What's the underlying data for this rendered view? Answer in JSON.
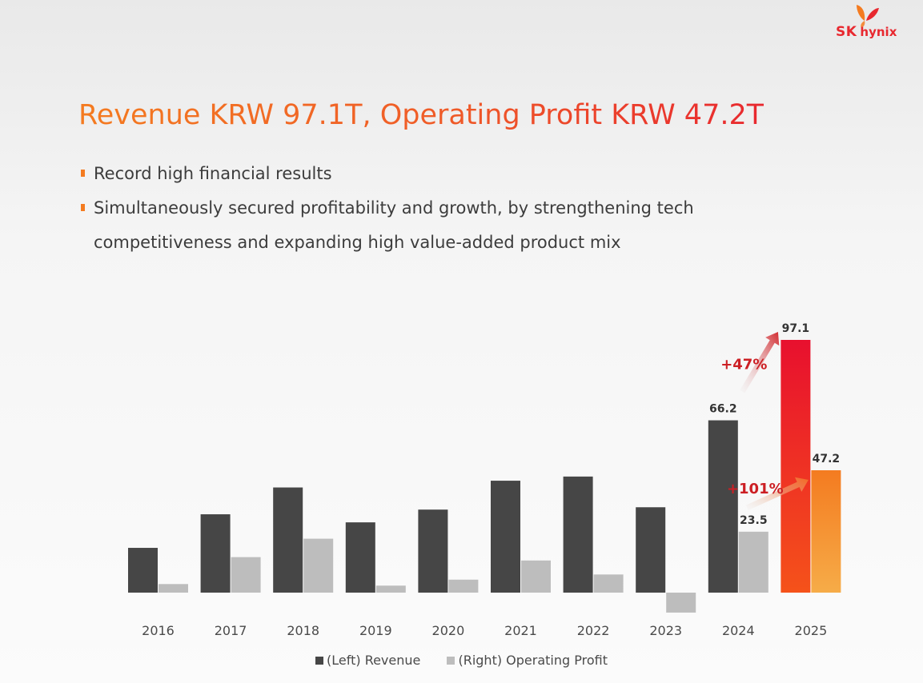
{
  "brand": {
    "name": "SK hynix",
    "sk": "SK",
    "hynix": "hynix"
  },
  "header": {
    "title": "Revenue KRW 97.1T, Operating Profit KRW 47.2T"
  },
  "bullets": [
    "Record high financial results",
    "Simultaneously secured profitability and growth, by strengthening tech competitiveness and expanding high value-added product mix"
  ],
  "colors": {
    "accent": "#f47b20",
    "revenue": "#464646",
    "operating_profit": "#bdbdbd",
    "highlight_red": "#e8282f",
    "highlight_orange": "#f47b20"
  },
  "chart_data": {
    "type": "bar",
    "categories": [
      "2016",
      "2017",
      "2018",
      "2019",
      "2020",
      "2021",
      "2022",
      "2023",
      "2024",
      "2025"
    ],
    "series": [
      {
        "name": "(Left) Revenue",
        "axis": "left",
        "values": [
          17.2,
          30.1,
          40.4,
          27.0,
          31.9,
          43.0,
          44.6,
          32.8,
          66.2,
          97.1
        ]
      },
      {
        "name": "(Right) Operating Profit",
        "axis": "right",
        "values": [
          3.3,
          13.7,
          20.8,
          2.7,
          5.0,
          12.4,
          7.0,
          -7.7,
          23.5,
          47.2
        ]
      }
    ],
    "data_labels": [
      {
        "series": "(Left) Revenue",
        "category": "2024",
        "text": "66.2"
      },
      {
        "series": "(Left) Revenue",
        "category": "2025",
        "text": "97.1"
      },
      {
        "series": "(Right) Operating Profit",
        "category": "2024",
        "text": "23.5"
      },
      {
        "series": "(Right) Operating Profit",
        "category": "2025",
        "text": "47.2"
      }
    ],
    "annotations": [
      {
        "text": "+47%",
        "series": "(Left) Revenue",
        "from": "2024",
        "to": "2025"
      },
      {
        "text": "+101%",
        "series": "(Right) Operating Profit",
        "from": "2024",
        "to": "2025"
      }
    ],
    "ylim_left": [
      0,
      97.1
    ],
    "ylim_right": [
      -7.7,
      47.2
    ],
    "grid": false,
    "legend_position": "bottom-center"
  }
}
